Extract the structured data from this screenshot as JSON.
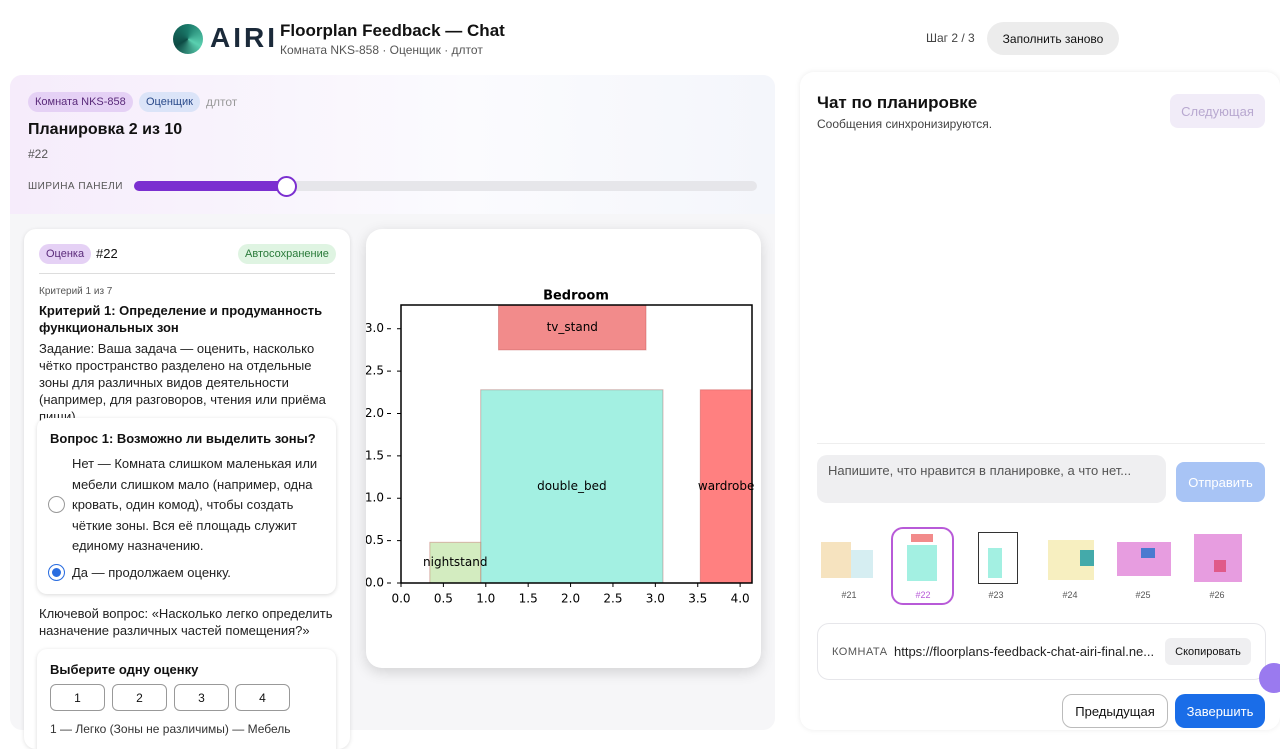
{
  "header": {
    "logo": "AIRI",
    "title": "Floorplan Feedback — Chat",
    "subtitle": "Комната NKS-858 · Оценщик · длтот",
    "step": "Шаг 2 / 3",
    "reset": "Заполнить заново"
  },
  "panel": {
    "badges": [
      "Комната NKS-858",
      "Оценщик"
    ],
    "user": "длтот",
    "heading": "Планировка 2 из 10",
    "id": "#22",
    "slider_label": "ШИРИНА ПАНЕЛИ"
  },
  "assessment": {
    "badge": "Оценка",
    "id": "#22",
    "autosave": "Автосохранение",
    "criterion_count": "Критерий 1 из 7",
    "criterion_title": "Критерий 1: Определение и продуманность функциональных зон",
    "task": "Задание: Ваша задача — оценить, насколько чётко пространство разделено на отдельные зоны для различных видов деятельности (например, для разговоров, чтения или приёма пищи).",
    "question": "Вопрос 1: Возможно ли выделить зоны?",
    "options": [
      "Нет — Комната слишком маленькая или мебели слишком мало (например, одна кровать, один комод), чтобы создать чёткие зоны. Вся её площадь служит единому назначению.",
      "Да — продолжаем оценку."
    ],
    "key_question": "Ключевой вопрос: «Насколько легко определить назначение различных частей помещения?»",
    "rating_title": "Выберите одну оценку",
    "ratings": [
      "1",
      "2",
      "3",
      "4"
    ],
    "rating_hint": "1 — Легко (Зоны не различимы) — Мебель"
  },
  "chart_data": {
    "type": "floorplan",
    "title": "Bedroom",
    "xlim": [
      0,
      4.14
    ],
    "ylim": [
      0,
      3.28
    ],
    "xticks": [
      {
        "value": 0,
        "label": "0.0"
      },
      0.5,
      {
        "value": 1,
        "label": "1.0"
      },
      1.5,
      {
        "value": 2,
        "label": "2.0"
      },
      2.5,
      {
        "value": 3,
        "label": "3.0"
      },
      3.5,
      {
        "value": 4,
        "label": "4.0"
      }
    ],
    "yticks": [
      {
        "value": 0,
        "label": "0.0"
      },
      0.5,
      {
        "value": 1,
        "label": "1.0"
      },
      1.5,
      {
        "value": 2,
        "label": "2.0"
      },
      2.5,
      {
        "value": 3,
        "label": "3.0"
      }
    ],
    "items": [
      {
        "name": "tv_stand",
        "x": 1.15,
        "y": 2.75,
        "width": 1.74,
        "height": 0.53,
        "color": "#f28b8b"
      },
      {
        "name": "double_bed",
        "x": 0.94,
        "y": 0,
        "width": 2.15,
        "height": 2.28,
        "color": "#a3f0e2"
      },
      {
        "name": "wardrobe",
        "x": 3.53,
        "y": 0,
        "width": 0.61,
        "height": 2.28,
        "color": "#ff8080"
      },
      {
        "name": "nightstand",
        "x": 0.34,
        "y": 0,
        "width": 0.6,
        "height": 0.48,
        "color": "#d3ecc0"
      }
    ]
  },
  "chat": {
    "title": "Чат по планировке",
    "subtitle": "Сообщения синхронизируются.",
    "next": "Следующая",
    "placeholder": "Напишите, что нравится в планировке, а что нет...",
    "send": "Отправить",
    "thumbnails": [
      "#21",
      "#22",
      "#23",
      "#24",
      "#25",
      "#26"
    ],
    "room_label": "КОМНАТА",
    "room_url": "https://floorplans-feedback-chat-airi-final.ne...",
    "copy": "Скопировать",
    "prev": "Предыдущая",
    "finish": "Завершить"
  }
}
